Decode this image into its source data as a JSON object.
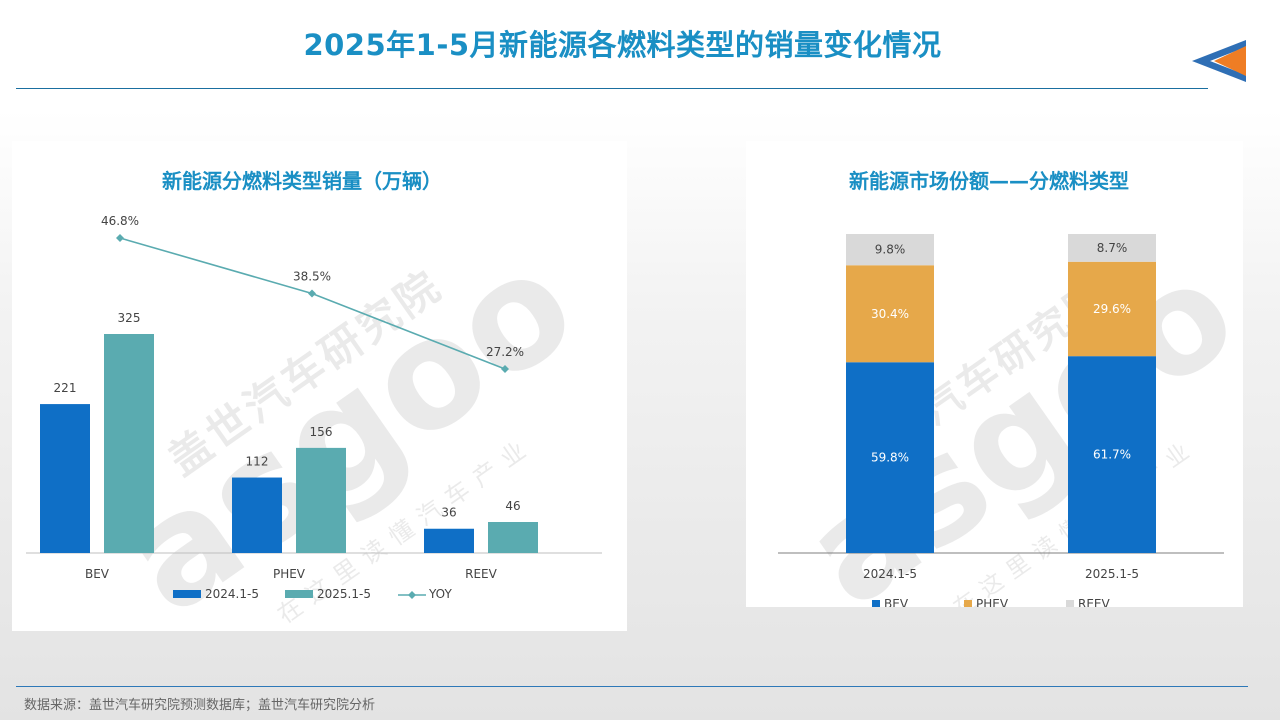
{
  "page": {
    "title": "2025年1-5月新能源各燃料类型的销量变化情况",
    "source": "数据来源：盖世汽车研究院预测数据库；盖世汽车研究院分析",
    "accent_color": "#1a8fc4",
    "arrow_icon": "left-triangle-arrow-icon"
  },
  "watermark": {
    "brand_cn": "盖世汽车研究院",
    "brand_en": "asgoo",
    "slogan": "在这里读懂汽车产业"
  },
  "chart_data": [
    {
      "type": "bar",
      "title": "新能源分燃料类型销量（万辆）",
      "categories": [
        "BEV",
        "PHEV",
        "REEV"
      ],
      "series": [
        {
          "name": "2024.1-5",
          "values": [
            221,
            112,
            36
          ],
          "color": "#0f6fc6"
        },
        {
          "name": "2025.1-5",
          "values": [
            325,
            156,
            46
          ],
          "color": "#5aabb0"
        }
      ],
      "line_series": {
        "name": "YOY",
        "values": [
          46.8,
          38.5,
          27.2
        ],
        "labels": [
          "46.8%",
          "38.5%",
          "27.2%"
        ],
        "color": "#5aabb0"
      },
      "ylim": [
        0,
        340
      ],
      "grid": false,
      "legend": "bottom"
    },
    {
      "type": "bar",
      "stacked": true,
      "title": "新能源市场份额——分燃料类型",
      "categories": [
        "2024.1-5",
        "2025.1-5"
      ],
      "series": [
        {
          "name": "BEV",
          "values": [
            59.8,
            61.7
          ],
          "labels": [
            "59.8%",
            "61.7%"
          ],
          "color": "#0f6fc6"
        },
        {
          "name": "PHEV",
          "values": [
            30.4,
            29.6
          ],
          "labels": [
            "30.4%",
            "29.6%"
          ],
          "color": "#e6a84a"
        },
        {
          "name": "REEV",
          "values": [
            9.8,
            8.7
          ],
          "labels": [
            "9.8%",
            "8.7%"
          ],
          "color": "#d9d9d9"
        }
      ],
      "ylim": [
        0,
        100
      ],
      "grid": false,
      "legend": "bottom"
    }
  ]
}
